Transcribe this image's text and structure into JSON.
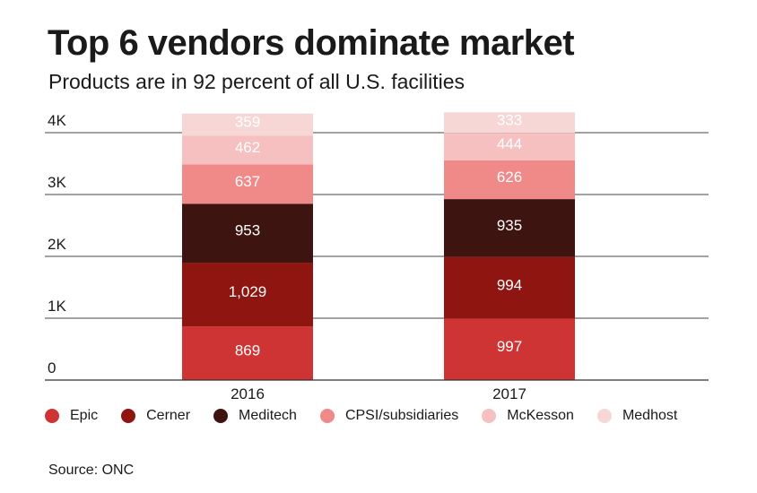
{
  "chart_data": {
    "type": "bar",
    "stacked": true,
    "title": "Top 6 vendors dominate market",
    "subtitle": "Products are in 92 percent of all U.S. facilities",
    "categories": [
      "2016",
      "2017"
    ],
    "series": [
      {
        "name": "Epic",
        "values": [
          869,
          997
        ],
        "labels": [
          "869",
          "997"
        ],
        "color": "#cf3434"
      },
      {
        "name": "Cerner",
        "values": [
          1029,
          994
        ],
        "labels": [
          "1,029",
          "994"
        ],
        "color": "#8e1510"
      },
      {
        "name": "Meditech",
        "values": [
          953,
          935
        ],
        "labels": [
          "953",
          "935"
        ],
        "color": "#3d1410"
      },
      {
        "name": "CPSI/subsidiaries",
        "values": [
          637,
          626
        ],
        "labels": [
          "637",
          "626"
        ],
        "color": "#f08a89"
      },
      {
        "name": "McKesson",
        "values": [
          462,
          444
        ],
        "labels": [
          "462",
          "444"
        ],
        "color": "#f6bfc0"
      },
      {
        "name": "Medhost",
        "values": [
          359,
          333
        ],
        "labels": [
          "359",
          "333"
        ],
        "color": "#f7d6d6"
      }
    ],
    "yticks": [
      0,
      1000,
      2000,
      3000,
      4000
    ],
    "ytick_labels": [
      "0",
      "1K",
      "2K",
      "3K",
      "4K"
    ],
    "ylim": [
      0,
      4000
    ],
    "grid": true,
    "legend_position": "bottom"
  },
  "source": "Source: ONC"
}
